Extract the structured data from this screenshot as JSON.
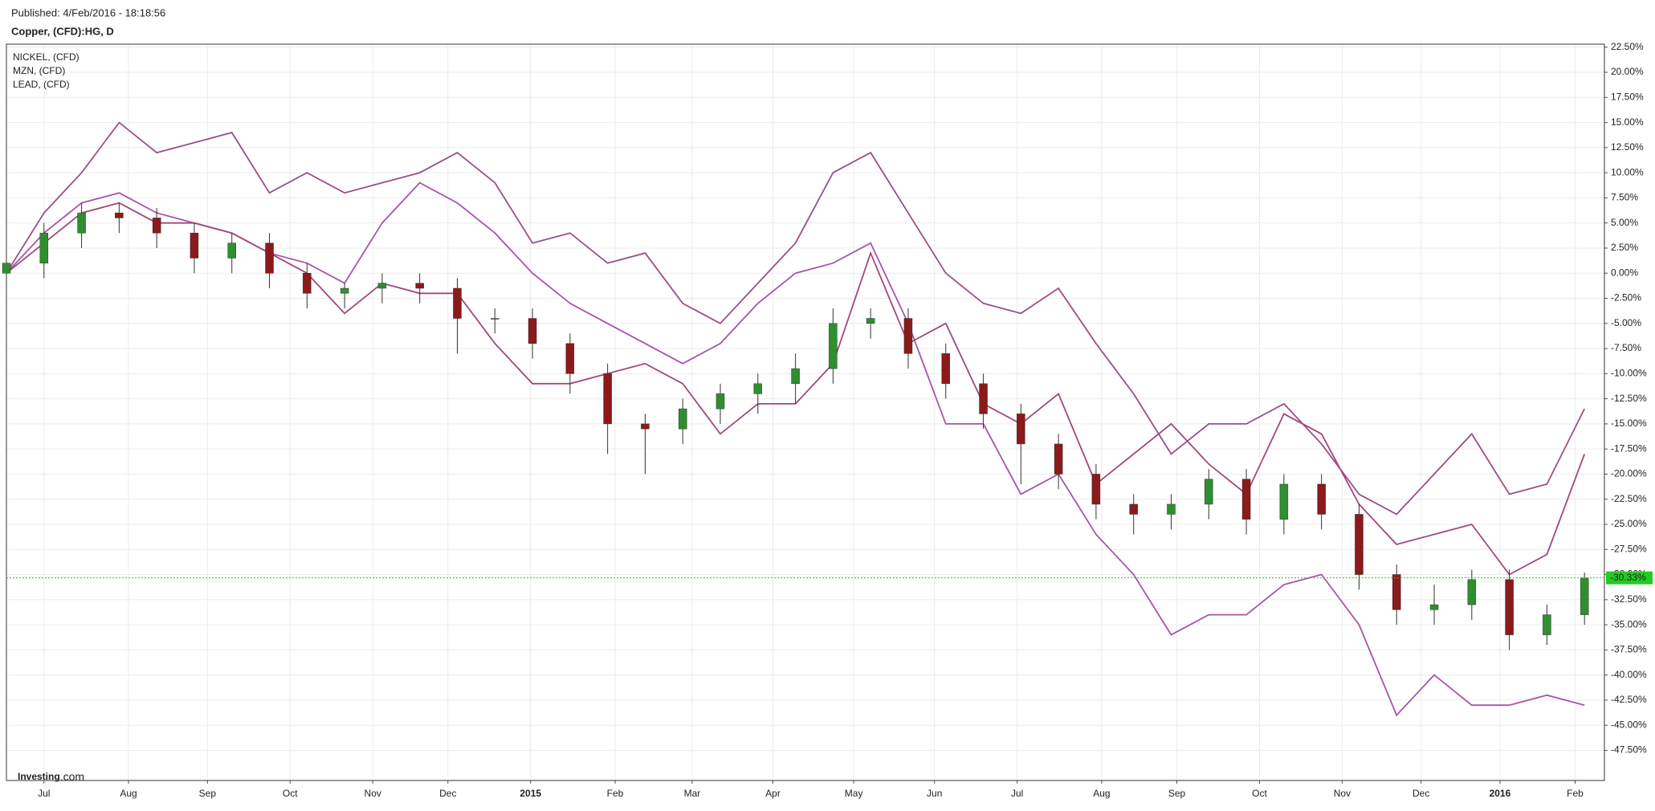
{
  "chart_data": {
    "type": "candlestick",
    "subtitle": "Published: 4/Feb/2016 - 18:18:56",
    "title": "Copper, (CFD):HG, D",
    "watermark": [
      "Investing",
      ".com"
    ],
    "xlim": [
      0,
      42.53
    ],
    "xticks": [
      {
        "value": 1.0,
        "label": "Jul"
      },
      {
        "value": 3.25,
        "label": "Aug"
      },
      {
        "value": 5.35,
        "label": "Sep"
      },
      {
        "value": 7.55,
        "label": "Oct"
      },
      {
        "value": 9.75,
        "label": "Nov"
      },
      {
        "value": 11.75,
        "label": "Dec"
      },
      {
        "value": 13.95,
        "label": "2015"
      },
      {
        "value": 16.2,
        "label": "Feb"
      },
      {
        "value": 18.25,
        "label": "Mar"
      },
      {
        "value": 20.4,
        "label": "Apr"
      },
      {
        "value": 22.55,
        "label": "May"
      },
      {
        "value": 24.7,
        "label": "Jun"
      },
      {
        "value": 26.9,
        "label": "Jul"
      },
      {
        "value": 29.15,
        "label": "Aug"
      },
      {
        "value": 31.15,
        "label": "Sep"
      },
      {
        "value": 33.35,
        "label": "Oct"
      },
      {
        "value": 35.55,
        "label": "Nov"
      },
      {
        "value": 37.65,
        "label": "Dec"
      },
      {
        "value": 39.75,
        "label": "2016"
      },
      {
        "value": 41.75,
        "label": "Feb"
      }
    ],
    "ylim": [
      -50.5,
      22.8
    ],
    "yticks": [
      {
        "value": 22.5,
        "label": "22.50%"
      },
      {
        "value": 20,
        "label": "20.00%"
      },
      {
        "value": 17.5,
        "label": "17.50%"
      },
      {
        "value": 15,
        "label": "15.00%"
      },
      {
        "value": 12.5,
        "label": "12.50%"
      },
      {
        "value": 10,
        "label": "10.00%"
      },
      {
        "value": 7.5,
        "label": "7.50%"
      },
      {
        "value": 5,
        "label": "5.00%"
      },
      {
        "value": 2.5,
        "label": "2.50%"
      },
      {
        "value": 0,
        "label": "0.00%"
      },
      {
        "value": -2.5,
        "label": "-2.50%"
      },
      {
        "value": -5,
        "label": "-5.00%"
      },
      {
        "value": -7.5,
        "label": "-7.50%"
      },
      {
        "value": -10,
        "label": "-10.00%"
      },
      {
        "value": -12.5,
        "label": "-12.50%"
      },
      {
        "value": -15,
        "label": "-15.00%"
      },
      {
        "value": -17.5,
        "label": "-17.50%"
      },
      {
        "value": -20,
        "label": "-20.00%"
      },
      {
        "value": -22.5,
        "label": "-22.50%"
      },
      {
        "value": -25,
        "label": "-25.00%"
      },
      {
        "value": -27.5,
        "label": "-27.50%"
      },
      {
        "value": -30,
        "label": "-30.00%"
      },
      {
        "value": -32.5,
        "label": "-32.50%"
      },
      {
        "value": -35,
        "label": "-35.00%"
      },
      {
        "value": -37.5,
        "label": "-37.50%"
      },
      {
        "value": -40,
        "label": "-40.00%"
      },
      {
        "value": -42.5,
        "label": "-42.50%"
      },
      {
        "value": -45,
        "label": "-45.00%"
      },
      {
        "value": -47.5,
        "label": "-47.50%"
      }
    ],
    "grid": true,
    "legend": "top-left",
    "up_color": "#2f8f2f",
    "down_color": "#8b1a1a",
    "ohlc": {
      "open": [
        0,
        1,
        4,
        6,
        5.5,
        4,
        1.5,
        3,
        0,
        -2,
        -1.5,
        -1,
        -1.5,
        -4.5,
        -4.5,
        -7,
        -10,
        -15,
        -15.5,
        -13.5,
        -12,
        -11,
        -9.5,
        -5,
        -4.5,
        -8,
        -11,
        -14,
        -17,
        -20,
        -23,
        -24,
        -23,
        -20.5,
        -24.5,
        -21,
        -24,
        -30,
        -33.5,
        -33,
        -30.5,
        -36,
        -34
      ],
      "high": [
        2,
        5,
        7,
        7,
        6.5,
        5,
        4,
        4,
        1,
        -1,
        0,
        0,
        -0.5,
        -3.5,
        -3.5,
        -6,
        -9,
        -14,
        -12.5,
        -11,
        -10,
        -8,
        -3.5,
        -3.5,
        -3.5,
        -7,
        -10,
        -13,
        -16,
        -19,
        -22,
        -22,
        -19.5,
        -19.5,
        -20,
        -20,
        -23,
        -29,
        -31,
        -29.5,
        -29.5,
        -33,
        -29.8
      ],
      "low": [
        -1.5,
        -0.5,
        2.5,
        4,
        2.5,
        0,
        0,
        -1.5,
        -3.5,
        -3.5,
        -3,
        -3,
        -8,
        -6,
        -8.5,
        -12,
        -18,
        -20,
        -17,
        -15,
        -14,
        -13,
        -11,
        -6.5,
        -9.5,
        -12.5,
        -15.5,
        -21,
        -21.5,
        -24.5,
        -26,
        -25.5,
        -24.5,
        -26,
        -26,
        -25.5,
        -31.5,
        -35,
        -35,
        -34.5,
        -37.5,
        -37,
        -35
      ],
      "close": [
        1,
        4,
        6,
        5.5,
        4,
        1.5,
        3,
        0,
        -2,
        -1.5,
        -1,
        -1.5,
        -4.5,
        -4.5,
        -7,
        -10,
        -15,
        -15.5,
        -13.5,
        -12,
        -11,
        -9.5,
        -5,
        -4.5,
        -8,
        -11,
        -14,
        -17,
        -20,
        -23,
        -24,
        -23,
        -20.5,
        -24.5,
        -21,
        -24,
        -30,
        -33.5,
        -33,
        -30.5,
        -36,
        -34,
        -30.33
      ]
    },
    "last_value": {
      "value": -30.33,
      "label": "-30.33%"
    },
    "last_color": "#22cc22",
    "series": [
      {
        "name": "NICKEL,  (CFD)",
        "color": "#9b4f86",
        "values": [
          0,
          6,
          10,
          15,
          12,
          13,
          14,
          8,
          10,
          8,
          9,
          10,
          12,
          9,
          3,
          4,
          1,
          2,
          -3,
          -5,
          -1,
          3,
          10,
          12,
          6,
          0,
          -3,
          -4,
          -1.5,
          -7,
          -12,
          -18,
          -15,
          -15,
          -13,
          -17,
          -22,
          -24,
          -20,
          -16,
          -22,
          -21,
          -13.5
        ]
      },
      {
        "name": "MZN,  (CFD)",
        "color": "#a855a8",
        "values": [
          0,
          4,
          7,
          8,
          6,
          5,
          4,
          2,
          1,
          -1,
          5,
          9,
          7,
          4,
          0,
          -3,
          -5,
          -7,
          -9,
          -7,
          -3,
          0,
          1,
          3,
          -5,
          -15,
          -15,
          -22,
          -20,
          -26,
          -30,
          -36,
          -34,
          -34,
          -31,
          -30,
          -35,
          -44,
          -40,
          -43,
          -43,
          -42,
          -43
        ]
      },
      {
        "name": "LEAD,  (CFD)",
        "color": "#a0487e",
        "values": [
          0,
          3,
          6,
          7,
          5,
          5,
          4,
          2,
          0,
          -4,
          -1,
          -2,
          -2,
          -7,
          -11,
          -11,
          -10,
          -9,
          -11,
          -16,
          -13,
          -13,
          -9,
          2,
          -7,
          -5,
          -13,
          -15,
          -12,
          -21,
          -18,
          -15,
          -19,
          -22,
          -14,
          -16,
          -23,
          -27,
          -26,
          -25,
          -30,
          -28,
          -18
        ]
      }
    ]
  }
}
